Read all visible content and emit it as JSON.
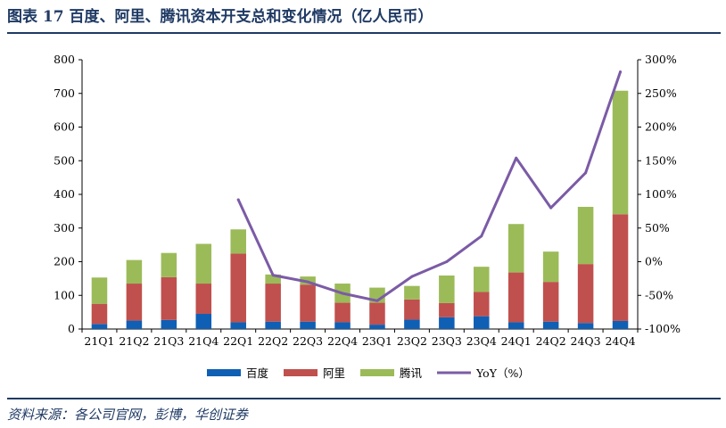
{
  "header": {
    "title": "图表 17 百度、阿里、腾讯资本开支总和变化情况（亿人民币）"
  },
  "footer": {
    "source": "资料来源：各公司官网，彭博，华创证券"
  },
  "colors": {
    "baidu": "#0f5fb5",
    "alibaba": "#c0504d",
    "tencent": "#9bbb59",
    "yoy": "#7b5ba6",
    "title": "#1f3a64"
  },
  "chart_data": {
    "type": "bar",
    "stacked": true,
    "categories": [
      "21Q1",
      "21Q2",
      "21Q3",
      "21Q4",
      "22Q1",
      "22Q2",
      "22Q3",
      "22Q4",
      "23Q1",
      "23Q2",
      "23Q3",
      "23Q4",
      "24Q1",
      "24Q2",
      "24Q3",
      "24Q4"
    ],
    "series": [
      {
        "name": "百度",
        "axis": "left",
        "values": [
          15,
          25,
          27,
          45,
          20,
          22,
          22,
          20,
          13,
          28,
          35,
          38,
          20,
          22,
          18,
          24
        ]
      },
      {
        "name": "阿里",
        "axis": "left",
        "values": [
          60,
          110,
          127,
          90,
          204,
          113,
          110,
          58,
          65,
          60,
          42,
          72,
          148,
          118,
          175,
          317
        ]
      },
      {
        "name": "腾讯",
        "axis": "left",
        "values": [
          78,
          70,
          72,
          118,
          72,
          27,
          24,
          57,
          45,
          40,
          82,
          75,
          144,
          90,
          170,
          367
        ]
      },
      {
        "name": "YoY（%）",
        "type": "line",
        "axis": "right",
        "x": [
          "22Q1",
          "22Q2",
          "22Q3",
          "22Q4",
          "23Q1",
          "23Q2",
          "23Q3",
          "23Q4",
          "24Q1",
          "24Q2",
          "24Q3",
          "24Q4"
        ],
        "values": [
          92,
          -20,
          -30,
          -47,
          -58,
          -22,
          0,
          38,
          154,
          80,
          132,
          282
        ]
      }
    ],
    "ylim_left": [
      0,
      800
    ],
    "yticks_left": [
      "0",
      "100",
      "200",
      "300",
      "400",
      "500",
      "600",
      "700",
      "800"
    ],
    "ylim_right": [
      -100,
      300
    ],
    "yticks_right": [
      "-100%",
      "-50%",
      "0%",
      "50%",
      "100%",
      "150%",
      "200%",
      "250%",
      "300%"
    ],
    "legend_position": "bottom",
    "grid": false
  }
}
